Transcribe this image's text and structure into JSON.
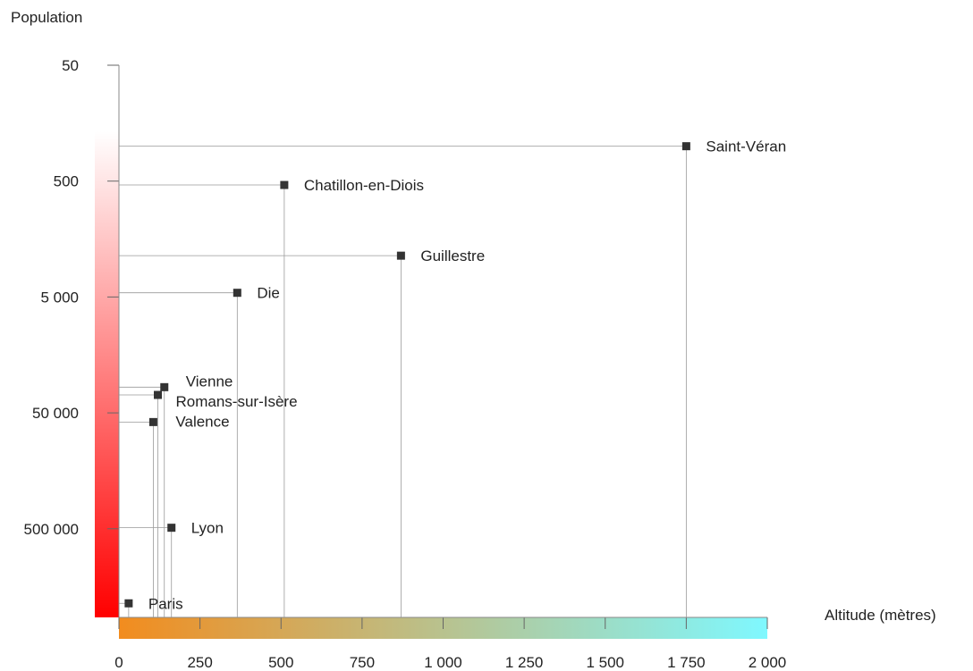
{
  "chart_data": {
    "type": "scatter",
    "xlabel": "Altitude (mètres)",
    "ylabel": "Population",
    "xlim": [
      0,
      2000
    ],
    "ylim_log": [
      50,
      10000000
    ],
    "y_scale": "log-inverted",
    "x_ticks": [
      0,
      250,
      500,
      750,
      1000,
      1250,
      1500,
      1750,
      2000
    ],
    "x_tick_labels": [
      "0",
      "250",
      "500",
      "750",
      "1 000",
      "1 250",
      "1 500",
      "1 750",
      "2 000"
    ],
    "y_ticks": [
      50,
      500,
      5000,
      50000,
      500000
    ],
    "y_tick_labels": [
      "50",
      "500",
      "5 000",
      "50 000",
      "500 000"
    ],
    "grid": false,
    "x_gradient_colors": [
      "#f28c1e",
      "#7ff8ff"
    ],
    "y_gradient_colors": [
      "#ffffff",
      "#ff0000"
    ],
    "points": [
      {
        "label": "Saint-Véran",
        "x": 1750,
        "y": 250
      },
      {
        "label": "Chatillon-en-Diois",
        "x": 510,
        "y": 540
      },
      {
        "label": "Guillestre",
        "x": 870,
        "y": 2200
      },
      {
        "label": "Die",
        "x": 365,
        "y": 4600
      },
      {
        "label": "Vienne",
        "x": 140,
        "y": 30000
      },
      {
        "label": "Romans-sur-Isère",
        "x": 120,
        "y": 35000
      },
      {
        "label": "Valence",
        "x": 106,
        "y": 60000
      },
      {
        "label": "Lyon",
        "x": 162,
        "y": 490000
      },
      {
        "label": "Paris",
        "x": 30,
        "y": 2200000
      }
    ]
  }
}
